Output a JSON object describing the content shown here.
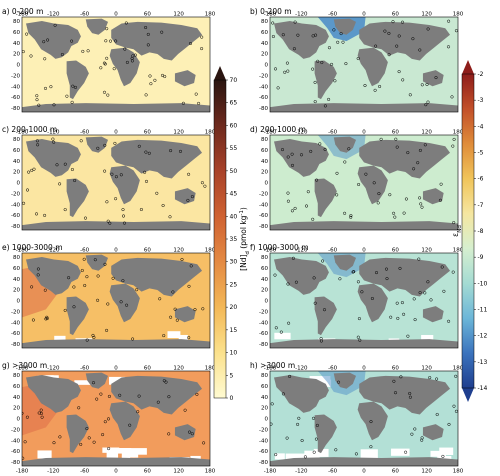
{
  "figure": {
    "xticks": [
      "-180",
      "-120",
      "-60",
      "0",
      "60",
      "120",
      "180"
    ],
    "yticks": [
      "80",
      "60",
      "40",
      "20",
      "0",
      "-20",
      "-40",
      "-60",
      "-80"
    ],
    "panels_left": [
      {
        "id": "a",
        "label": "a) 0-200 m",
        "variable": "Nd"
      },
      {
        "id": "c",
        "label": "c) 200-1000 m",
        "variable": "Nd"
      },
      {
        "id": "e",
        "label": "e) 1000-3000 m",
        "variable": "Nd"
      },
      {
        "id": "g",
        "label": "g) >3000 m",
        "variable": "Nd"
      }
    ],
    "panels_right": [
      {
        "id": "b",
        "label": "b) 0-200 m",
        "variable": "eNd"
      },
      {
        "id": "d",
        "label": "d) 200-1000 m",
        "variable": "eNd"
      },
      {
        "id": "f",
        "label": "f) 1000-3000 m",
        "variable": "eNd"
      },
      {
        "id": "h",
        "label": "h) >3000 m",
        "variable": "eNd"
      }
    ]
  },
  "colorbars": {
    "nd": {
      "label": "[Nd]d (pmol kg-1)",
      "label_main": "[Nd]",
      "label_sub": "d",
      "label_unit": " (pmol kg",
      "label_sup": "-1",
      "label_close": ")",
      "ticks": [
        "0",
        "5",
        "10",
        "15",
        "20",
        "25",
        "30",
        "35",
        "40",
        "45",
        "50",
        "55",
        "60",
        "65",
        "70"
      ],
      "min": 0,
      "max": 70,
      "colors": [
        "#fffbd2",
        "#fbe18c",
        "#f3b857",
        "#e48a43",
        "#cf6232",
        "#a8422a",
        "#6e2a1e",
        "#2a1510"
      ]
    },
    "end": {
      "label_main": "ε",
      "label_sub": "Nd",
      "ticks": [
        "-2",
        "-3",
        "-4",
        "-5",
        "-6",
        "-7",
        "-8",
        "-9",
        "-10",
        "-11",
        "-12",
        "-13",
        "-14"
      ],
      "min": -14,
      "max": -2,
      "colors": [
        "#1f3f8f",
        "#3b73bd",
        "#6cb6d8",
        "#a4dbd3",
        "#d6efcf",
        "#f5e6a0",
        "#f0c45a",
        "#df8c3a",
        "#c2502a",
        "#8e1d1a"
      ]
    }
  },
  "style": {
    "land": "#7d7d7d",
    "nodata": "#ffffff",
    "nd_ocean": [
      "#fdf0b6",
      "#fbe6a2",
      "#f6bf66",
      "#f29c5c"
    ],
    "end_ocean": [
      "#c9e8d2",
      "#cdeccf",
      "#b8e3d5",
      "#b3e0d6"
    ],
    "point": "#000000"
  }
}
